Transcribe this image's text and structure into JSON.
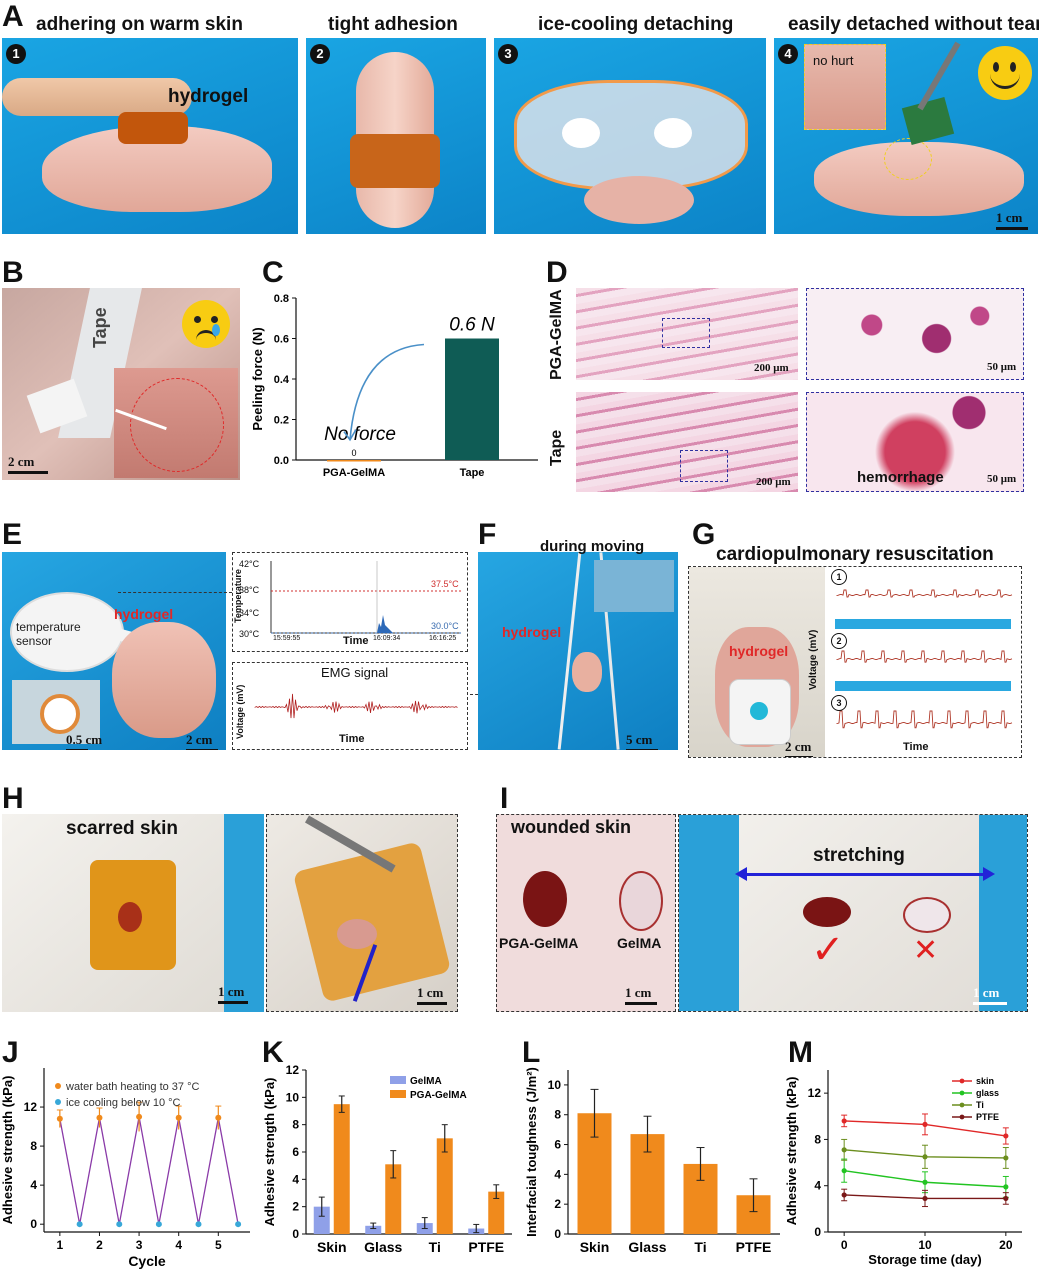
{
  "panelA": {
    "letter": "A",
    "subs": [
      {
        "num": "1",
        "caption": "adhering on warm skin",
        "label": "hydrogel"
      },
      {
        "num": "2",
        "caption": "tight adhesion"
      },
      {
        "num": "3",
        "caption": "ice-cooling detaching"
      },
      {
        "num": "4",
        "caption": "easily detached without tearing",
        "inset": "no hurt",
        "scale": "1 cm"
      }
    ]
  },
  "panelB": {
    "letter": "B",
    "tape": "Tape",
    "scale": "2 cm"
  },
  "panelC": {
    "letter": "C"
  },
  "panelD": {
    "letter": "D",
    "row1": "PGA-GelMA",
    "row2": "Tape",
    "scale_large": "200 μm",
    "scale_small": "50 μm",
    "hemorrhage": "hemorrhage"
  },
  "panelE": {
    "letter": "E",
    "sensor": "temperature sensor",
    "hydrogel": "hydrogel",
    "scale1": "0.5 cm",
    "scale2": "2 cm",
    "temp_chart": {
      "ylabel": "Temperature",
      "xlabel": "Time",
      "ticks": [
        "42°C",
        "38°C",
        "34°C",
        "30°C"
      ],
      "times": [
        "15:59:55",
        "16:09:34",
        "16:16:25"
      ],
      "high": "37.5°C",
      "low": "30.0°C"
    },
    "emg_chart": {
      "title": "EMG signal",
      "ylabel": "Voltage (mV)",
      "xlabel": "Time"
    }
  },
  "panelF": {
    "letter": "F",
    "caption": "during moving",
    "hydrogel": "hydrogel",
    "scale": "5 cm"
  },
  "panelG": {
    "letter": "G",
    "caption": "cardiopulmonary resuscitation",
    "hydrogel": "hydrogel",
    "scale": "2 cm",
    "ylabel": "Voltage (mV)",
    "xlabel": "Time",
    "nums": [
      "1",
      "2",
      "3"
    ]
  },
  "panelH": {
    "letter": "H",
    "caption": "scarred skin",
    "scale1": "1 cm",
    "scale2": "1 cm"
  },
  "panelI": {
    "letter": "I",
    "caption": "wounded skin",
    "label1": "PGA-GelMA",
    "label2": "GelMA",
    "stretch": "stretching",
    "check": "✓",
    "cross": "✕",
    "scale1": "1 cm",
    "scale2": "1 cm"
  },
  "panelJ": {
    "letter": "J"
  },
  "panelK": {
    "letter": "K"
  },
  "panelL": {
    "letter": "L"
  },
  "panelM": {
    "letter": "M"
  },
  "chart_data": [
    {
      "id": "C",
      "type": "bar",
      "categories": [
        "PGA-GelMA",
        "Tape"
      ],
      "values": [
        0,
        0.6
      ],
      "ylabel": "Peeling force (N)",
      "ylim": [
        0,
        0.8
      ],
      "yticks": [
        "0.0",
        "0.2",
        "0.4",
        "0.6",
        "0.8"
      ],
      "annotations": [
        "0.6 N",
        "No force",
        "0"
      ],
      "colors": [
        "#f08a1c",
        "#0f5c55"
      ]
    },
    {
      "id": "J",
      "type": "line",
      "xlabel": "Cycle",
      "ylabel": "Adhesive strength (kPa)",
      "xticks": [
        "1",
        "2",
        "3",
        "4",
        "5"
      ],
      "yticks": [
        "0",
        "4",
        "8",
        "12"
      ],
      "xlim": [
        0.6,
        5.8
      ],
      "ylim": [
        -0.8,
        16
      ],
      "series": [
        {
          "name": "water bath heating to 37 °C",
          "x": [
            1,
            2,
            3,
            4,
            5
          ],
          "y": [
            10.8,
            10.9,
            11.0,
            10.9,
            10.9
          ],
          "err": [
            0.9,
            1.0,
            1.5,
            1.2,
            1.2
          ],
          "color": "#f08a1c"
        },
        {
          "name": "ice cooling below 10 °C",
          "x": [
            1.5,
            2.5,
            3.5,
            4.5,
            5.5
          ],
          "y": [
            0,
            0,
            0,
            0,
            0
          ],
          "color": "#38a8d8"
        }
      ]
    },
    {
      "id": "K",
      "type": "bar",
      "categories": [
        "Skin",
        "Glass",
        "Ti",
        "PTFE"
      ],
      "ylabel": "Adhesive strength (kPa)",
      "ylim": [
        0,
        12
      ],
      "yticks": [
        "0",
        "2",
        "4",
        "6",
        "8",
        "10",
        "12"
      ],
      "series": [
        {
          "name": "GelMA",
          "values": [
            2.0,
            0.6,
            0.8,
            0.4
          ],
          "err": [
            0.7,
            0.2,
            0.4,
            0.3
          ],
          "color": "#8fa0e8"
        },
        {
          "name": "PGA-GelMA",
          "values": [
            9.5,
            5.1,
            7.0,
            3.1
          ],
          "err": [
            0.6,
            1.0,
            1.0,
            0.5
          ],
          "color": "#f08a1c"
        }
      ]
    },
    {
      "id": "L",
      "type": "bar",
      "categories": [
        "Skin",
        "Glass",
        "Ti",
        "PTFE"
      ],
      "ylabel": "Interfacial toughness (J/m²)",
      "values": [
        8.1,
        6.7,
        4.7,
        2.6
      ],
      "err": [
        1.6,
        1.2,
        1.1,
        1.1
      ],
      "ylim": [
        0,
        11
      ],
      "yticks": [
        "0",
        "2",
        "4",
        "6",
        "8",
        "10"
      ],
      "color": "#f08a1c"
    },
    {
      "id": "M",
      "type": "line",
      "xlabel": "Storage time (day)",
      "ylabel": "Adhesive strength (kPa)",
      "xticks": [
        "0",
        "10",
        "20"
      ],
      "yticks": [
        "0",
        "4",
        "8",
        "12"
      ],
      "xlim": [
        -2,
        22
      ],
      "ylim": [
        0,
        14
      ],
      "x": [
        0,
        10,
        20
      ],
      "series": [
        {
          "name": "skin",
          "values": [
            9.6,
            9.3,
            8.3
          ],
          "err": [
            0.5,
            0.9,
            0.7
          ],
          "color": "#e02828",
          "marker": "square"
        },
        {
          "name": "glass",
          "values": [
            5.3,
            4.3,
            3.9
          ],
          "err": [
            1.0,
            0.9,
            0.9
          ],
          "color": "#22c422",
          "marker": "circle"
        },
        {
          "name": "Ti",
          "values": [
            7.1,
            6.5,
            6.4
          ],
          "err": [
            0.9,
            1.0,
            0.9
          ],
          "color": "#6b8e1e",
          "marker": "triangle"
        },
        {
          "name": "PTFE",
          "values": [
            3.2,
            2.9,
            2.9
          ],
          "err": [
            0.5,
            0.7,
            0.5
          ],
          "color": "#7a1818",
          "marker": "tri-down"
        }
      ]
    }
  ]
}
